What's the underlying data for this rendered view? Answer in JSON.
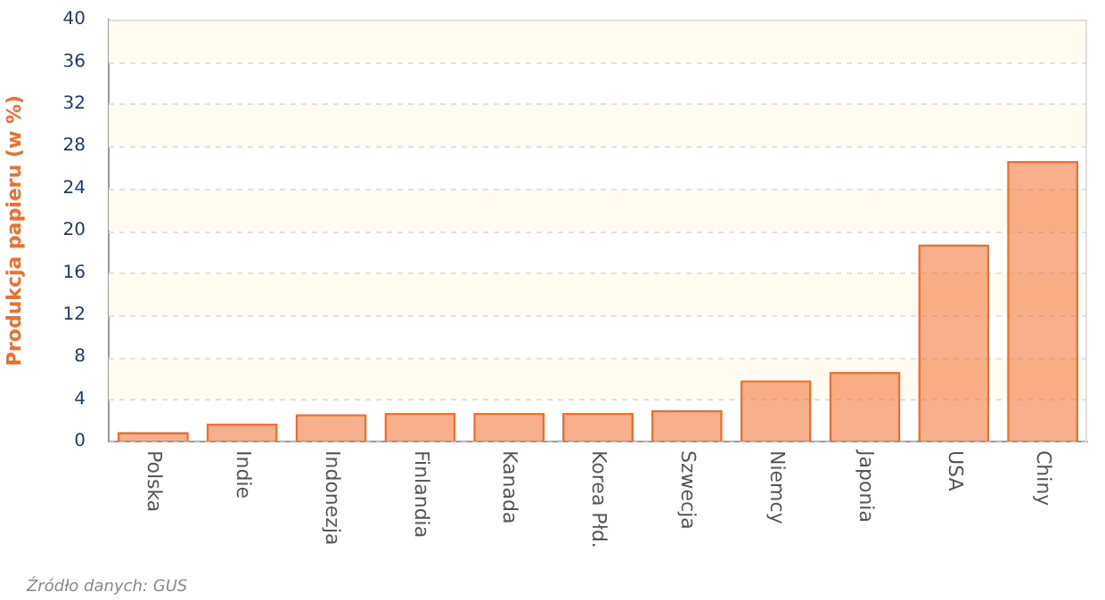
{
  "chart_data": {
    "type": "bar",
    "ylabel": "Produkcja papieru (w %)",
    "categories": [
      "Polska",
      "Indie",
      "Indonezja",
      "Finlandia",
      "Kanada",
      "Korea Płd.",
      "Szwecja",
      "Niemcy",
      "Japonia",
      "USA",
      "Chiny"
    ],
    "series": [
      {
        "color": "#f26d2b",
        "values": [
          0.9,
          1.7,
          2.6,
          2.7,
          2.7,
          2.7,
          3.0,
          5.8,
          6.6,
          18.7,
          26.6
        ]
      }
    ],
    "ylim": [
      0,
      40
    ],
    "yticks": [
      0,
      4,
      8,
      12,
      16,
      20,
      24,
      28,
      32,
      36,
      40
    ],
    "grid": "y",
    "legend": false,
    "annotations": [
      "Źródło danych: GUS"
    ]
  }
}
